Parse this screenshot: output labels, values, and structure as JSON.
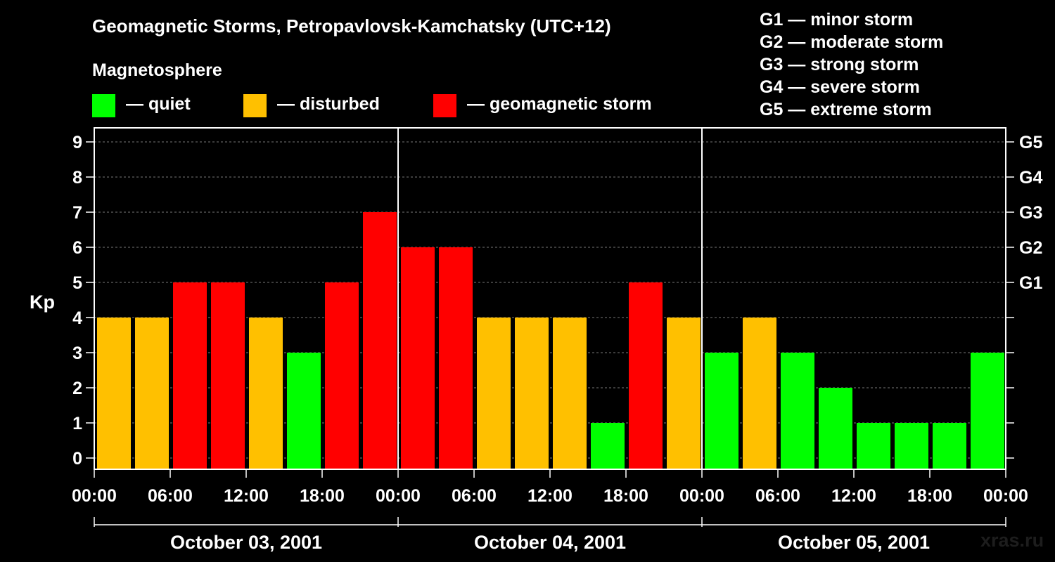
{
  "title": "Geomagnetic Storms, Petropavlovsk-Kamchatsky (UTC+12)",
  "legend": {
    "heading": "Magnetosphere",
    "items": [
      {
        "label": "— quiet",
        "color": "#00ff00"
      },
      {
        "label": "— disturbed",
        "color": "#ffc000"
      },
      {
        "label": "— geomagnetic storm",
        "color": "#ff0000"
      }
    ]
  },
  "g_scale": [
    "G1 — minor storm",
    "G2 — moderate storm",
    "G3 — strong storm",
    "G4 — severe storm",
    "G5 — extreme storm"
  ],
  "watermark": "xras.ru",
  "chart_data": {
    "type": "bar",
    "ylabel": "Kp",
    "ylim": [
      0,
      9
    ],
    "y_ticks": [
      "0",
      "1",
      "2",
      "3",
      "4",
      "5",
      "6",
      "7",
      "8",
      "9"
    ],
    "right_ticks": [
      {
        "kp": 5,
        "label": "G1"
      },
      {
        "kp": 6,
        "label": "G2"
      },
      {
        "kp": 7,
        "label": "G3"
      },
      {
        "kp": 8,
        "label": "G4"
      },
      {
        "kp": 9,
        "label": "G5"
      }
    ],
    "x_tick_labels": [
      "00:00",
      "06:00",
      "12:00",
      "18:00",
      "00:00",
      "06:00",
      "12:00",
      "18:00",
      "00:00",
      "06:00",
      "12:00",
      "18:00",
      "00:00"
    ],
    "days": [
      "October 03, 2001",
      "October 04, 2001",
      "October 05, 2001"
    ],
    "bar_interval_hours": 3,
    "values": [
      4,
      4,
      5,
      5,
      4,
      3,
      5,
      7,
      6,
      6,
      4,
      4,
      4,
      1,
      5,
      4,
      3,
      4,
      3,
      2,
      1,
      1,
      1,
      3
    ],
    "grid": "dashed at each integer Kp",
    "colors": {
      "quiet": "#00ff00",
      "disturbed": "#ffc000",
      "storm": "#ff0000"
    }
  }
}
